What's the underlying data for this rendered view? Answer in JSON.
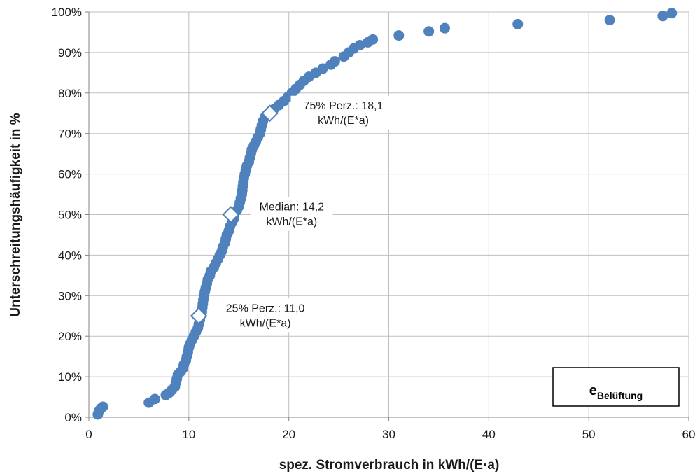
{
  "chart_data": {
    "type": "scatter",
    "xlabel": "spez. Stromverbrauch in kWh/(E·a)",
    "ylabel": "Unterschreitungshäufigkeit in %",
    "xlim": [
      0,
      60
    ],
    "ylim": [
      0,
      1
    ],
    "x_ticks": [
      "0",
      "10",
      "20",
      "30",
      "40",
      "50",
      "60"
    ],
    "y_ticks": [
      "0%",
      "10%",
      "20%",
      "30%",
      "40%",
      "50%",
      "60%",
      "70%",
      "80%",
      "90%",
      "100%"
    ],
    "grid": "major",
    "legend_box": {
      "main": "e",
      "subscript": "Belüftung"
    },
    "colors": {
      "points": "#4f81bd",
      "axes": "#868686",
      "grid": "#bfbfbf"
    },
    "series": [
      {
        "values": [
          [
            0.9,
            0.007
          ],
          [
            1.0,
            0.015
          ],
          [
            1.2,
            0.022
          ],
          [
            1.4,
            0.026
          ],
          [
            6.0,
            0.036
          ],
          [
            6.6,
            0.045
          ],
          [
            7.7,
            0.055
          ],
          [
            8.0,
            0.06
          ],
          [
            8.3,
            0.067
          ],
          [
            8.6,
            0.075
          ],
          [
            8.7,
            0.085
          ],
          [
            8.8,
            0.095
          ],
          [
            8.9,
            0.105
          ],
          [
            9.2,
            0.113
          ],
          [
            9.4,
            0.12
          ],
          [
            9.5,
            0.13
          ],
          [
            9.7,
            0.14
          ],
          [
            9.8,
            0.15
          ],
          [
            9.9,
            0.16
          ],
          [
            10.0,
            0.172
          ],
          [
            10.1,
            0.18
          ],
          [
            10.3,
            0.19
          ],
          [
            10.5,
            0.2
          ],
          [
            10.7,
            0.21
          ],
          [
            10.9,
            0.22
          ],
          [
            11.0,
            0.23
          ],
          [
            11.1,
            0.24
          ],
          [
            11.3,
            0.26
          ],
          [
            11.35,
            0.27
          ],
          [
            11.4,
            0.28
          ],
          [
            11.45,
            0.29
          ],
          [
            11.5,
            0.3
          ],
          [
            11.6,
            0.31
          ],
          [
            11.7,
            0.32
          ],
          [
            11.8,
            0.33
          ],
          [
            11.9,
            0.34
          ],
          [
            12.1,
            0.35
          ],
          [
            12.2,
            0.36
          ],
          [
            12.5,
            0.37
          ],
          [
            12.7,
            0.38
          ],
          [
            12.9,
            0.39
          ],
          [
            13.1,
            0.4
          ],
          [
            13.3,
            0.41
          ],
          [
            13.4,
            0.42
          ],
          [
            13.6,
            0.43
          ],
          [
            13.7,
            0.44
          ],
          [
            13.8,
            0.45
          ],
          [
            14.0,
            0.46
          ],
          [
            14.1,
            0.47
          ],
          [
            14.3,
            0.48
          ],
          [
            14.5,
            0.49
          ],
          [
            14.8,
            0.51
          ],
          [
            15.0,
            0.52
          ],
          [
            15.1,
            0.53
          ],
          [
            15.2,
            0.54
          ],
          [
            15.3,
            0.55
          ],
          [
            15.35,
            0.56
          ],
          [
            15.4,
            0.57
          ],
          [
            15.45,
            0.58
          ],
          [
            15.5,
            0.59
          ],
          [
            15.6,
            0.6
          ],
          [
            15.7,
            0.61
          ],
          [
            15.8,
            0.62
          ],
          [
            16.0,
            0.63
          ],
          [
            16.1,
            0.64
          ],
          [
            16.2,
            0.65
          ],
          [
            16.3,
            0.66
          ],
          [
            16.5,
            0.67
          ],
          [
            16.7,
            0.68
          ],
          [
            16.9,
            0.69
          ],
          [
            17.1,
            0.7
          ],
          [
            17.2,
            0.71
          ],
          [
            17.3,
            0.72
          ],
          [
            17.4,
            0.73
          ],
          [
            17.6,
            0.74
          ],
          [
            18.5,
            0.76
          ],
          [
            19.0,
            0.77
          ],
          [
            19.5,
            0.78
          ],
          [
            19.9,
            0.79
          ],
          [
            20.3,
            0.8
          ],
          [
            20.7,
            0.81
          ],
          [
            21.1,
            0.82
          ],
          [
            21.5,
            0.83
          ],
          [
            22.0,
            0.84
          ],
          [
            22.7,
            0.85
          ],
          [
            23.4,
            0.86
          ],
          [
            24.2,
            0.87
          ],
          [
            24.6,
            0.878
          ],
          [
            25.5,
            0.89
          ],
          [
            26.0,
            0.9
          ],
          [
            26.5,
            0.91
          ],
          [
            27.1,
            0.918
          ],
          [
            27.9,
            0.925
          ],
          [
            28.4,
            0.932
          ],
          [
            31.0,
            0.942
          ],
          [
            34.0,
            0.952
          ],
          [
            35.6,
            0.96
          ],
          [
            42.9,
            0.97
          ],
          [
            52.1,
            0.98
          ],
          [
            57.4,
            0.99
          ],
          [
            58.3,
            0.997
          ]
        ]
      }
    ],
    "annotations": [
      {
        "label": "25% Perz.: 11,0",
        "sublabel": "kWh/(E*a)",
        "x": 11.0,
        "y": 0.25
      },
      {
        "label": "Median: 14,2",
        "sublabel": "kWh/(E*a)",
        "x": 14.2,
        "y": 0.5
      },
      {
        "label": "75% Perz.: 18,1",
        "sublabel": "kWh/(E*a)",
        "x": 18.1,
        "y": 0.75
      }
    ]
  }
}
